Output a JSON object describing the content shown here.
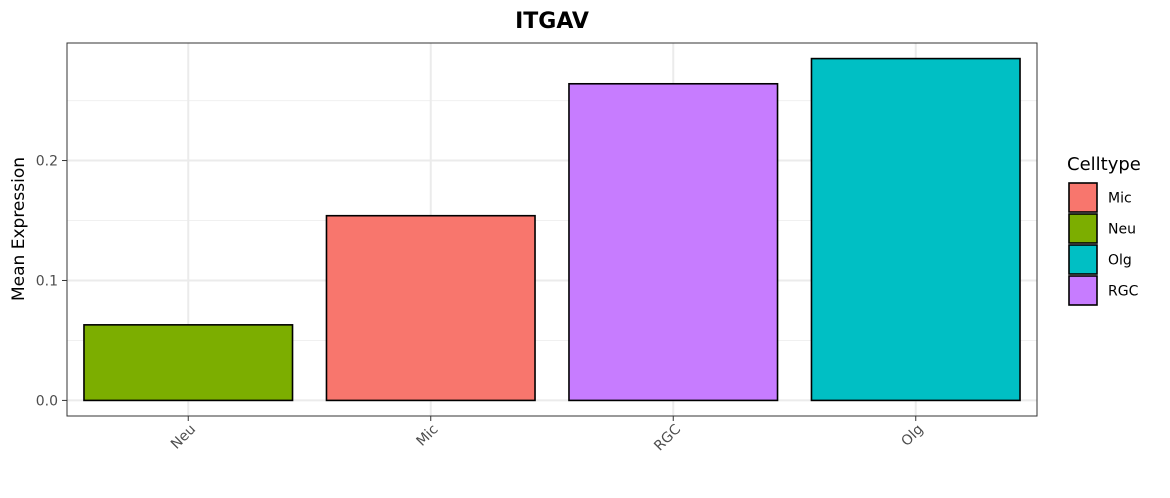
{
  "chart_data": {
    "type": "bar",
    "title": "ITGAV",
    "xlabel": "",
    "ylabel": "Mean Expression",
    "categories": [
      "Neu",
      "Mic",
      "RGC",
      "Olg"
    ],
    "values": [
      0.063,
      0.154,
      0.264,
      0.285
    ],
    "bar_celltypes": [
      "Neu",
      "Mic",
      "RGC",
      "Olg"
    ],
    "ylim": [
      -0.013,
      0.298
    ],
    "yticks": [
      0.0,
      0.1,
      0.2
    ],
    "ytick_labels": [
      "0.0",
      "0.1",
      "0.2"
    ],
    "grid": true,
    "legend": {
      "title": "Celltype",
      "placement": "right",
      "entries": [
        {
          "label": "Mic",
          "color": "#F8766D"
        },
        {
          "label": "Neu",
          "color": "#7CAE00"
        },
        {
          "label": "Olg",
          "color": "#00BFC4"
        },
        {
          "label": "RGC",
          "color": "#C77CFF"
        }
      ]
    },
    "colors": {
      "Mic": "#F8766D",
      "Neu": "#7CAE00",
      "Olg": "#00BFC4",
      "RGC": "#C77CFF"
    }
  }
}
